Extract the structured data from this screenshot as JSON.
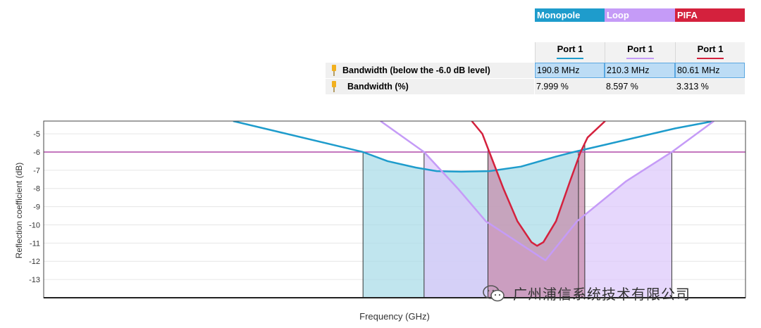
{
  "legend": [
    {
      "name": "Monopole",
      "color": "#1e9ccc"
    },
    {
      "name": "Loop",
      "color": "#c59bf7"
    },
    {
      "name": "PIFA",
      "color": "#d4213d"
    }
  ],
  "table": {
    "columns": [
      "Port 1",
      "Port 1",
      "Port 1"
    ],
    "rows": [
      {
        "label": "Bandwidth (below the -6.0 dB level)",
        "values": [
          "190.8 MHz",
          "210.3 MHz",
          "80.61 MHz"
        ]
      },
      {
        "label": "Bandwidth (%)",
        "values": [
          "7.999 %",
          "8.597 %",
          "3.313 %"
        ]
      }
    ]
  },
  "chart_data": {
    "type": "line",
    "xlabel": "Frequency (GHz)",
    "ylabel": "Reflection coefficient (dB)",
    "ylim": [
      -14,
      -4.3
    ],
    "yticks": [
      -5,
      -6,
      -7,
      -8,
      -9,
      -10,
      -11,
      -12,
      -13
    ],
    "threshold": {
      "value": -6,
      "color": "#b04aa8"
    },
    "xlim": [
      0,
      100
    ],
    "series": [
      {
        "name": "Monopole",
        "color": "#1e9ccc",
        "fill": "#a7dbe8",
        "x": [
          27,
          45.5,
          49,
          53,
          56,
          59.5,
          63.5,
          68,
          73,
          75.5,
          80,
          85,
          90,
          95.5
        ],
        "y": [
          -4.3,
          -6.0,
          -6.5,
          -6.85,
          -7.05,
          -7.08,
          -7.05,
          -6.8,
          -6.25,
          -6.0,
          -5.6,
          -5.15,
          -4.7,
          -4.3
        ],
        "band": [
          45.5,
          76.2
        ]
      },
      {
        "name": "Loop",
        "color": "#c59bf7",
        "fill": "#dcc8fb",
        "x": [
          48,
          54.2,
          59,
          63,
          71.5,
          76,
          83,
          89.5,
          95.5
        ],
        "y": [
          -4.3,
          -6.0,
          -8.0,
          -9.8,
          -11.95,
          -9.8,
          -7.6,
          -6.0,
          -4.3
        ],
        "band": [
          54.2,
          89.5
        ]
      },
      {
        "name": "PIFA",
        "color": "#d4213d",
        "fill": "#c78aaa",
        "x": [
          61,
          62.5,
          63.5,
          65.5,
          67.5,
          69.5,
          70.3,
          71.2,
          73,
          75,
          76.5,
          77.5,
          80
        ],
        "y": [
          -4.3,
          -5.0,
          -6.0,
          -8.0,
          -9.8,
          -10.95,
          -11.15,
          -10.95,
          -9.8,
          -7.6,
          -6.0,
          -5.2,
          -4.3
        ],
        "band": [
          63.3,
          77.1
        ]
      }
    ]
  },
  "watermark": {
    "text": "广州浦信系统技术有限公司",
    "icon": "wechat-icon"
  }
}
